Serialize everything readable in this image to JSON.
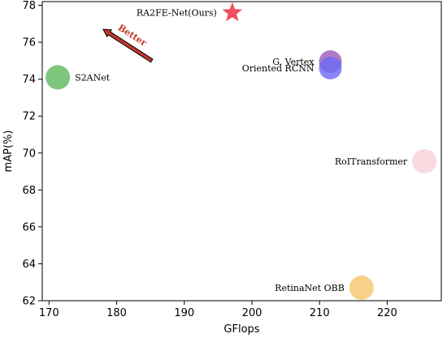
{
  "chart_data": {
    "type": "scatter",
    "title": "",
    "xlabel": "GFlops",
    "ylabel": "mAP(%)",
    "xlim": [
      169,
      228
    ],
    "ylim": [
      62,
      78.2
    ],
    "xticks": [
      170,
      180,
      190,
      200,
      210,
      220
    ],
    "yticks": [
      62,
      64,
      66,
      68,
      70,
      72,
      74,
      76,
      78
    ],
    "grid": false,
    "points": [
      {
        "label": "S2ANet",
        "x": 171.3,
        "y": 74.1,
        "color": "#5cb85c",
        "marker": "circle",
        "size": 15,
        "label_side": "right"
      },
      {
        "label": "G. Vertex",
        "x": 211.6,
        "y": 74.95,
        "color": "#9b59b6",
        "marker": "circle",
        "size": 14,
        "label_side": "left"
      },
      {
        "label": "Oriented RCNN",
        "x": 211.6,
        "y": 74.6,
        "color": "#6a6af5",
        "marker": "circle",
        "size": 14,
        "label_side": "left"
      },
      {
        "label": "RoITransformer",
        "x": 225.5,
        "y": 69.55,
        "color": "#f9cfd8",
        "marker": "circle",
        "size": 15,
        "label_side": "left"
      },
      {
        "label": "RetinaNet OBB",
        "x": 216.2,
        "y": 62.7,
        "color": "#f8c46a",
        "marker": "circle",
        "size": 15,
        "label_side": "left"
      },
      {
        "label": "RA2FE-Net(Ours)",
        "x": 197.1,
        "y": 77.6,
        "color": "#ee4455",
        "marker": "star",
        "size": 13,
        "label_side": "left"
      }
    ],
    "annotation": {
      "text": "Better",
      "from": [
        185.2,
        75.0
      ],
      "to": [
        178.0,
        76.7
      ],
      "color": "#c0392b"
    }
  }
}
